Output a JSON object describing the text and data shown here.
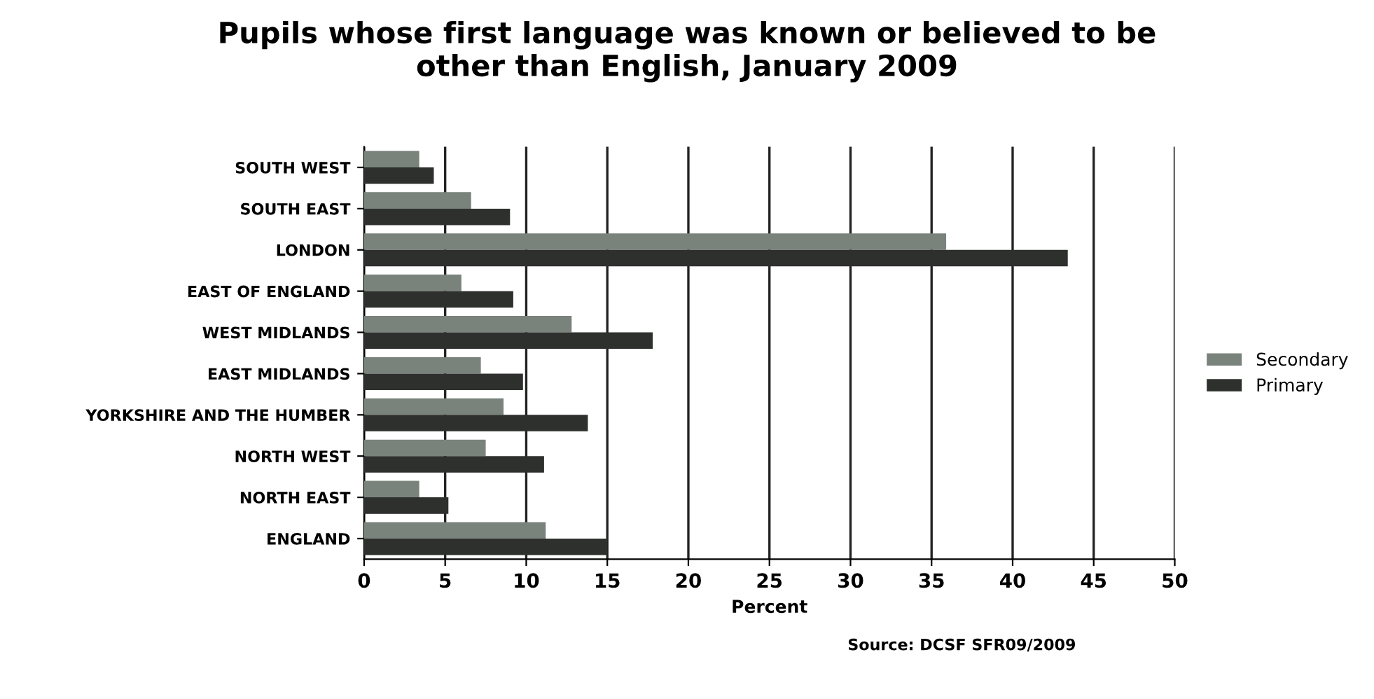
{
  "chart_data": {
    "type": "bar",
    "orientation": "horizontal",
    "title": "Pupils whose first language was known or believed to be\nother than English, January 2009",
    "categories": [
      "SOUTH WEST",
      "SOUTH EAST",
      "LONDON",
      "EAST OF ENGLAND",
      "WEST MIDLANDS",
      "EAST MIDLANDS",
      "YORKSHIRE AND THE HUMBER",
      "NORTH WEST",
      "NORTH EAST",
      "ENGLAND"
    ],
    "series": [
      {
        "name": "Secondary",
        "color": "#7a827c",
        "values": [
          3.4,
          6.6,
          35.9,
          6.0,
          12.8,
          7.2,
          8.6,
          7.5,
          3.4,
          11.2
        ]
      },
      {
        "name": "Primary",
        "color": "#2e302e",
        "values": [
          4.3,
          9.0,
          43.4,
          9.2,
          17.8,
          9.8,
          13.8,
          11.1,
          5.2,
          15.0
        ]
      }
    ],
    "xlabel": "Percent",
    "annotations": [
      "Source: DCSF SFR09/2009"
    ],
    "xlim": [
      0,
      50
    ],
    "xticks": [
      0,
      5,
      10,
      15,
      20,
      25,
      30,
      35,
      40,
      45,
      50
    ],
    "grid": "x",
    "legend": "right"
  }
}
